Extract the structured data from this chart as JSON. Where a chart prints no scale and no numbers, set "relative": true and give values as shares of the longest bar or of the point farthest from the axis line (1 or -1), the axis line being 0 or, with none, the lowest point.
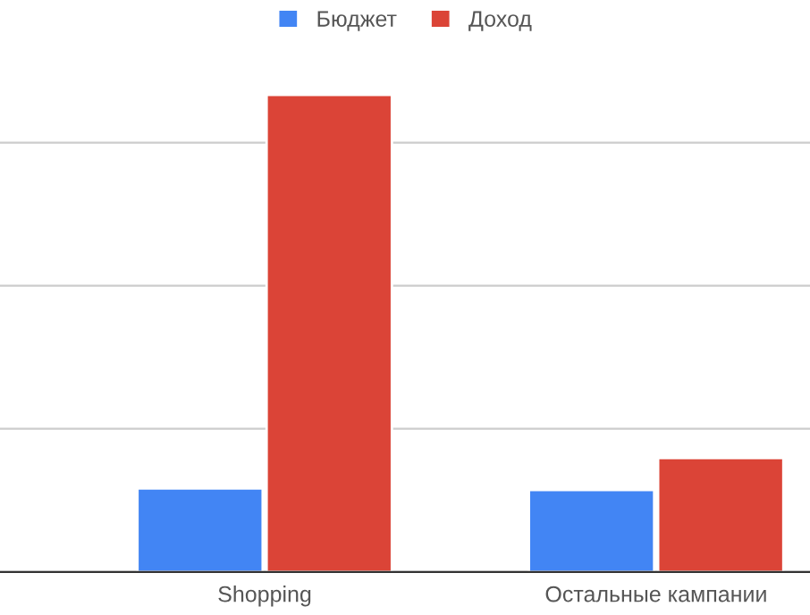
{
  "chart_data": {
    "type": "bar",
    "relative": true,
    "categories": [
      "Shopping",
      "Остальные кампании"
    ],
    "series": [
      {
        "name": "Бюджет",
        "color": "#4285f4",
        "values": [
          0.175,
          0.172
        ]
      },
      {
        "name": "Доход",
        "color": "#db4437",
        "values": [
          1,
          0.239
        ]
      }
    ],
    "grid": "y",
    "legend": "top",
    "tick_labels": "x"
  }
}
